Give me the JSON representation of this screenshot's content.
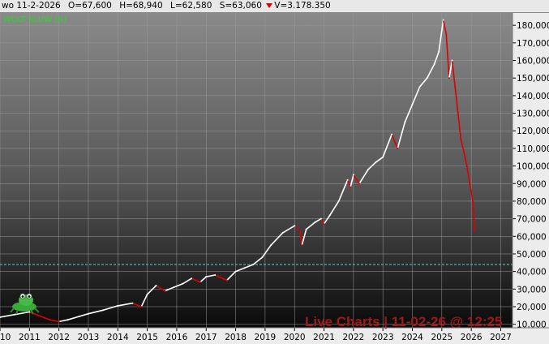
{
  "header": {
    "date": "wo 11-2-2026",
    "open": "O=67,600",
    "high": "H=68,940",
    "low": "L=62,580",
    "close": "S=63,060",
    "volume": "V=3.178.350"
  },
  "watermark": "Live Charts | 11-02-26 @ 12:25",
  "colors": {
    "line": "#ffffff",
    "down": "#dd0000",
    "reference": "#66cccc",
    "symbol": "#22dd22",
    "watermark": "#a01818"
  },
  "chart_data": {
    "type": "line",
    "symbol": "WOLT KLUW (A)",
    "x_ticks": [
      "2010",
      "2011",
      "2012",
      "2013",
      "2014",
      "2015",
      "2016",
      "2017",
      "2018",
      "2019",
      "2020",
      "2021",
      "2022",
      "2023",
      "2024",
      "2025",
      "2026",
      "2027"
    ],
    "y_ticks": [
      "10,000",
      "20,000",
      "30,000",
      "40,000",
      "50,000",
      "60,000",
      "70,000",
      "80,000",
      "90,000",
      "100,000",
      "110,000",
      "120,000",
      "130,000",
      "140,000",
      "150,000",
      "160,000",
      "170,000",
      "180,000"
    ],
    "xlim": [
      2010.0,
      2027.4
    ],
    "ylim": [
      8000,
      187000
    ],
    "reference_line": 44000,
    "series": [
      {
        "x": [
          2010.0,
          2010.5,
          2011.0,
          2011.3,
          2011.7,
          2012.0,
          2012.3,
          2012.7,
          2013.0,
          2013.5,
          2014.0,
          2014.5,
          2014.8,
          2015.0,
          2015.3,
          2015.6,
          2015.9,
          2016.2,
          2016.5,
          2016.8,
          2017.0,
          2017.3,
          2017.7,
          2018.0,
          2018.3,
          2018.6,
          2018.9,
          2019.2,
          2019.6,
          2020.0,
          2020.2,
          2020.25,
          2020.4,
          2020.7,
          2020.9,
          2021.0,
          2021.2,
          2021.5,
          2021.8,
          2021.9,
          2022.0,
          2022.2,
          2022.5,
          2022.75,
          2023.0,
          2023.3,
          2023.5,
          2023.75,
          2024.0,
          2024.25,
          2024.5,
          2024.75,
          2024.9,
          2025.05,
          2025.15,
          2025.25,
          2025.35,
          2025.45,
          2025.55,
          2025.65,
          2025.75,
          2025.85,
          2025.95,
          2026.05,
          2026.11
        ],
        "values": [
          14000,
          15500,
          17000,
          15000,
          12500,
          11500,
          12500,
          14500,
          16000,
          18000,
          20500,
          22000,
          20000,
          27000,
          32000,
          29000,
          31000,
          33000,
          36000,
          34000,
          37000,
          38000,
          35000,
          40000,
          42000,
          44000,
          48000,
          55000,
          62000,
          66000,
          63000,
          55000,
          64000,
          68000,
          70000,
          67000,
          72000,
          80000,
          92000,
          88000,
          95000,
          90000,
          98000,
          102000,
          105000,
          118000,
          110000,
          125000,
          135000,
          145000,
          150000,
          158000,
          165000,
          183000,
          175000,
          150000,
          160000,
          145000,
          130000,
          115000,
          108000,
          100000,
          90000,
          80000,
          63000
        ]
      }
    ]
  }
}
